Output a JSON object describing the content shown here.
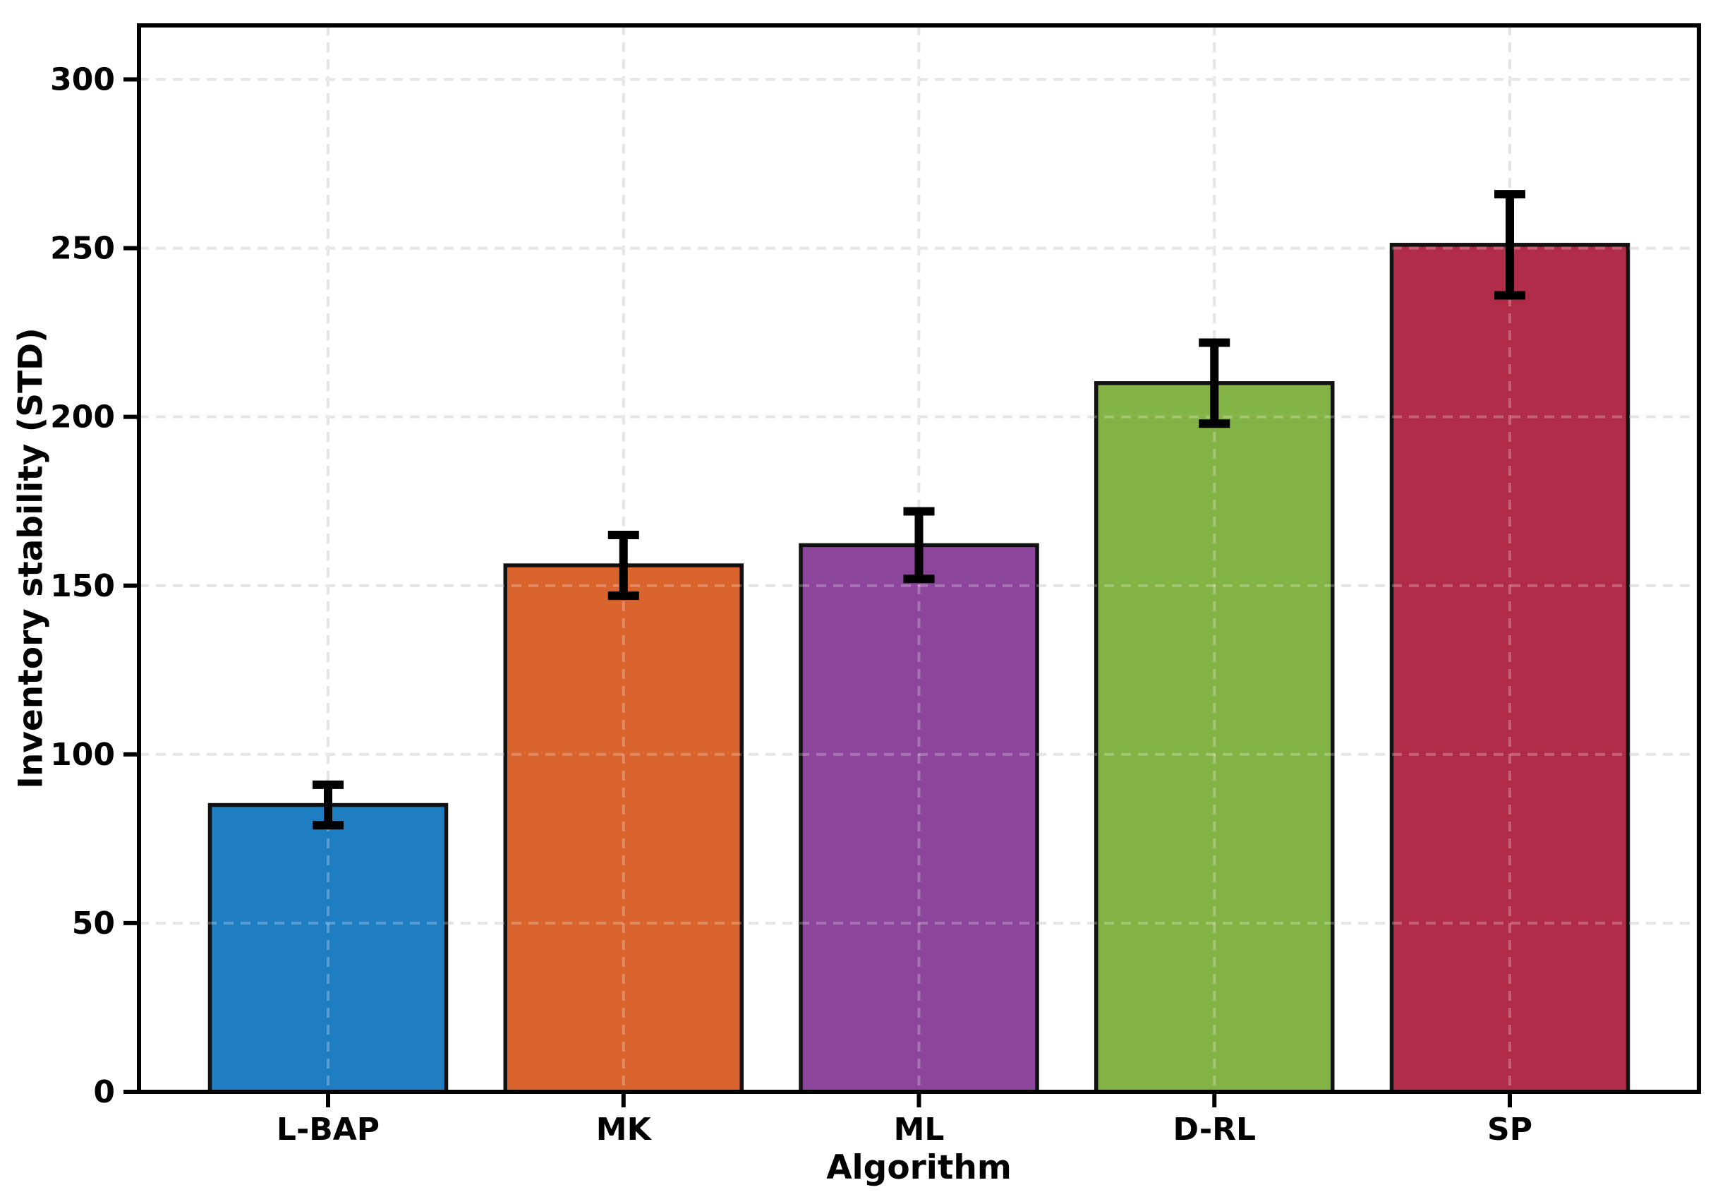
{
  "chart_data": {
    "type": "bar",
    "title": "",
    "xlabel": "Algorithm",
    "ylabel": "Inventory stability (STD)",
    "categories": [
      "L-BAP",
      "MK",
      "ML",
      "D-RL",
      "SP"
    ],
    "values": [
      85,
      156,
      162,
      210,
      251
    ],
    "error_bars": [
      6,
      9,
      10,
      12,
      15
    ],
    "bar_colors": [
      "#1F7DC2",
      "#D9642E",
      "#8B459A",
      "#83B344",
      "#B02C48"
    ],
    "bar_edge_color": "#111111",
    "error_bar_color": "#000000",
    "yticks": [
      0,
      50,
      100,
      150,
      200,
      250,
      300
    ],
    "ylim": [
      0,
      316
    ],
    "xlim_units": [
      -0.64,
      4.64
    ],
    "bar_width_units": 0.8,
    "grid": {
      "visible": true,
      "style": "dashed",
      "color": "#dcdcdc",
      "axes": "both",
      "vertical_lines_at": "bar centers",
      "horizontal_lines_at": [
        50,
        100,
        150,
        200,
        250,
        300
      ]
    },
    "legend": "none",
    "plot_border": "full black box",
    "tick_label_color": "#000000",
    "background_color": "#ffffff"
  }
}
